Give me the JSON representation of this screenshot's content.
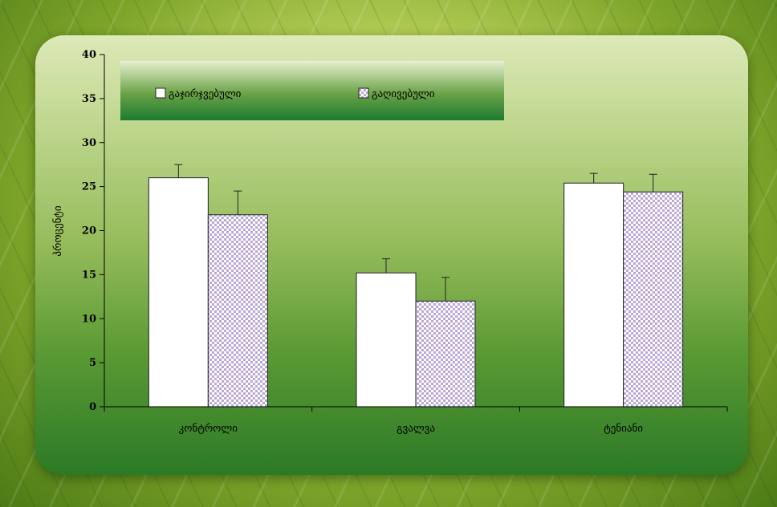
{
  "chart_data": {
    "type": "bar",
    "categories": [
      "კონტროლი",
      "გვალვა",
      "ტენიანი"
    ],
    "series": [
      {
        "name": "გაჯირჯვებული",
        "values": [
          26,
          15.2,
          25.4
        ],
        "errors": [
          1.5,
          1.6,
          1.1
        ]
      },
      {
        "name": "გაღივებული",
        "values": [
          21.8,
          12,
          24.4
        ],
        "errors": [
          2.7,
          2.7,
          2.0
        ]
      }
    ],
    "ylabel": "პროცენტი",
    "ylim": [
      0,
      40
    ],
    "yticks": [
      0,
      5,
      10,
      15,
      20,
      25,
      30,
      35,
      40
    ],
    "grid": false,
    "legend_position": "top-left"
  },
  "colors": {
    "series_1_fill": "#ffffff",
    "series_2_fill_a": "#ffffff",
    "series_2_fill_b": "#b9a9d9",
    "bar_stroke": "#222222",
    "legend_band_top": "#e8f0d0",
    "legend_band_bottom": "#1e7a30"
  }
}
